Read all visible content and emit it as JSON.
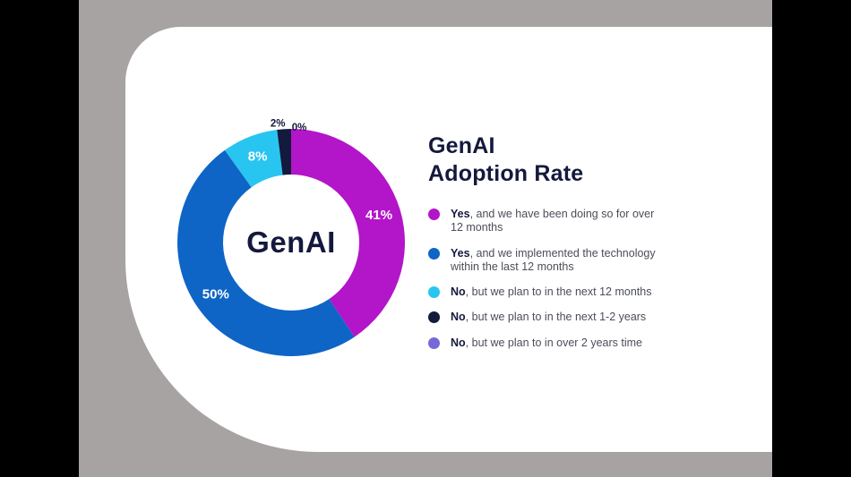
{
  "frame": {
    "letterbox_color": "#000000",
    "stage_color": "#a6a3a2",
    "card_color": "#ffffff"
  },
  "chart_data": {
    "type": "pie",
    "subtype": "donut",
    "title_line1": "GenAI",
    "title_line2": "Adoption Rate",
    "center_label": "GenAI",
    "legend_position": "right",
    "start_angle_deg": 0,
    "accent_text_color": "#14193c",
    "segments": [
      {
        "lead": "Yes",
        "rest": ", and we have been doing so for over 12 months",
        "value": 41,
        "pct_label": "41%",
        "color": "#b315c9",
        "placement": "inside"
      },
      {
        "lead": "Yes",
        "rest": ", and we implemented the technology within the last 12 months",
        "value": 50,
        "pct_label": "50%",
        "color": "#0e65c6",
        "placement": "inside"
      },
      {
        "lead": "No",
        "rest": ", but we plan to in the next 12 months",
        "value": 8,
        "pct_label": "8%",
        "color": "#29c5f1",
        "placement": "inside"
      },
      {
        "lead": "No",
        "rest": ", but we plan to in the next 1-2 years",
        "value": 2,
        "pct_label": "2%",
        "color": "#121a3e",
        "placement": "outside",
        "label_dx": -6,
        "label_dy": 8
      },
      {
        "lead": "No",
        "rest": ", but we plan to in over 2 years time",
        "value": 0,
        "pct_label": "0%",
        "color": "#7668d8",
        "placement": "outside",
        "label_dx": 9,
        "label_dy": 13
      }
    ]
  }
}
